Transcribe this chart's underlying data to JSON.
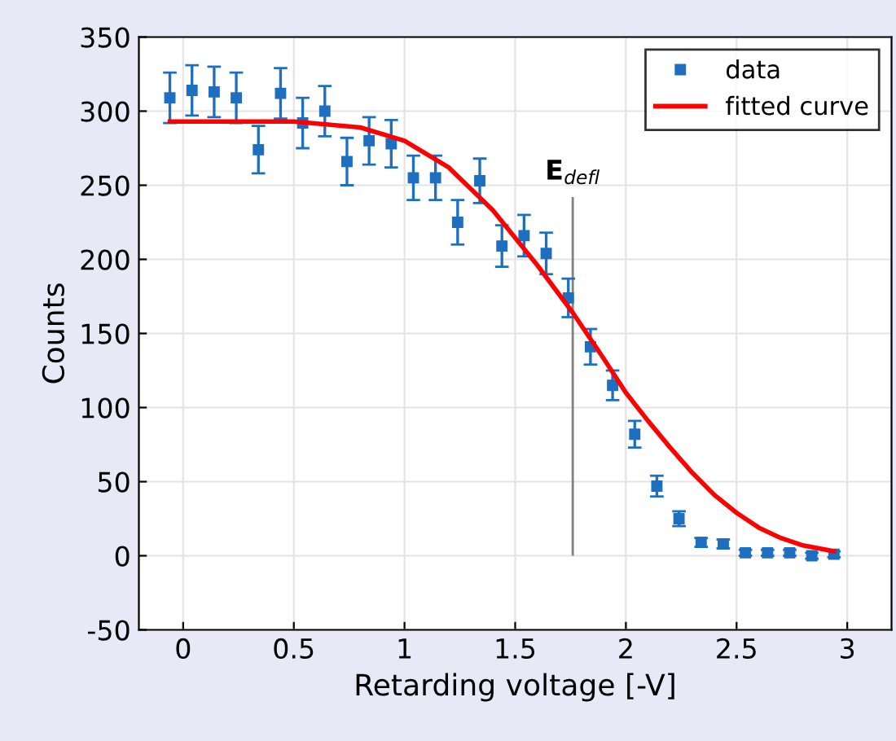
{
  "chart_data": {
    "type": "scatter",
    "xlabel": "Retarding voltage [-V]",
    "ylabel": "Counts",
    "xlim": [
      -0.2,
      3.2
    ],
    "ylim": [
      -50,
      350
    ],
    "xticks": [
      0,
      0.5,
      1,
      1.5,
      2,
      2.5,
      3
    ],
    "yticks": [
      -50,
      0,
      50,
      100,
      150,
      200,
      250,
      300,
      350
    ],
    "grid": true,
    "legend": "top right",
    "series": [
      {
        "name": "data",
        "color": "#1f6fc0",
        "marker": "square",
        "x": [
          -0.06,
          0.04,
          0.14,
          0.24,
          0.34,
          0.44,
          0.54,
          0.64,
          0.74,
          0.84,
          0.94,
          1.04,
          1.14,
          1.24,
          1.34,
          1.44,
          1.54,
          1.64,
          1.74,
          1.84,
          1.94,
          2.04,
          2.14,
          2.24,
          2.34,
          2.44,
          2.54,
          2.64,
          2.74,
          2.84,
          2.94
        ],
        "values": [
          309,
          314,
          313,
          309,
          274,
          312,
          292,
          300,
          266,
          280,
          278,
          255,
          255,
          225,
          253,
          209,
          216,
          204,
          174,
          141,
          115,
          82,
          47,
          25,
          9,
          8,
          2,
          2,
          2,
          0,
          1
        ],
        "errors": [
          17,
          17,
          17,
          17,
          16,
          17,
          17,
          17,
          16,
          16,
          16,
          15,
          15,
          15,
          15,
          14,
          14,
          14,
          13,
          12,
          10,
          9,
          7,
          5,
          3,
          3,
          2,
          2,
          2,
          2,
          2
        ]
      },
      {
        "name": "fitted curve",
        "type": "line",
        "color": "#ff0000",
        "line_style": "solid",
        "x": [
          -0.06,
          0.5,
          0.8,
          1.0,
          1.2,
          1.4,
          1.6,
          1.76,
          1.9,
          2.0,
          2.1,
          2.2,
          2.3,
          2.4,
          2.5,
          2.6,
          2.7,
          2.8,
          2.94
        ],
        "values": [
          293,
          293,
          289,
          280,
          262,
          233,
          196,
          164,
          133,
          110,
          91,
          73,
          56,
          41,
          29,
          19,
          12,
          7,
          3
        ]
      }
    ],
    "ref_lines": [
      {
        "axis": "x",
        "value": 1.76,
        "label": "E$_{defl}$",
        "color": "#808080"
      }
    ]
  }
}
